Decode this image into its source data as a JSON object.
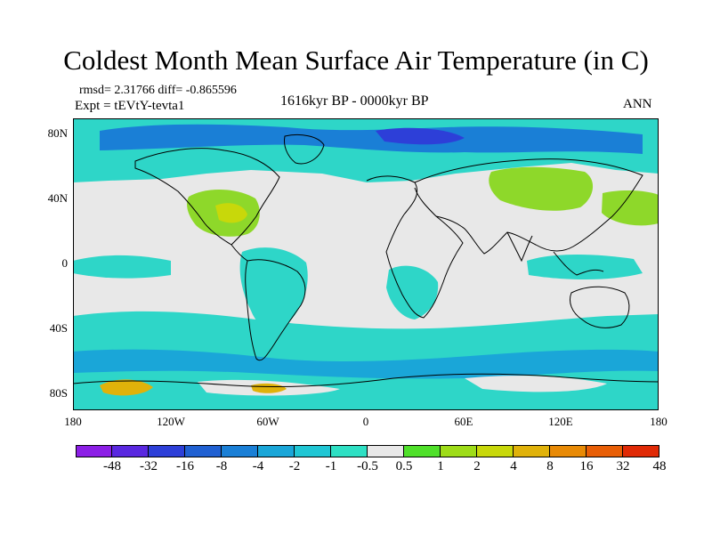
{
  "title": "Coldest Month Mean Surface Air Temperature (in C)",
  "stats": "rmsd= 2.31766 diff= -0.865596",
  "experiment": "Expt = tEVtY-tevta1",
  "period": "1616kyr BP - 0000kyr BP",
  "season": "ANN",
  "y_ticks": [
    "80N",
    "40N",
    "0",
    "40S",
    "80S"
  ],
  "x_ticks": [
    "180",
    "120W",
    "60W",
    "0",
    "60E",
    "120E",
    "180"
  ],
  "colorbar": {
    "labels": [
      "-48",
      "-32",
      "-16",
      "-8",
      "-4",
      "-2",
      "-1",
      "-0.5",
      "0.5",
      "1",
      "2",
      "4",
      "8",
      "16",
      "32",
      "48"
    ],
    "colors": [
      "#8c1fe6",
      "#5a28e0",
      "#2d3fd8",
      "#2060d2",
      "#1a7fd6",
      "#1aa6d8",
      "#20c6d4",
      "#2ee0c4",
      "#e8e8e8",
      "#4fe02a",
      "#9edc18",
      "#c8d80a",
      "#e0b20a",
      "#e88a06",
      "#e85e06",
      "#e02a06"
    ]
  },
  "colors": {
    "ocean_near_zero": "#e8e8e8",
    "cool_anomaly": "#2ed6c8",
    "warm_anomaly": "#8ed82a",
    "strong_cool": "#2a7ad8",
    "strong_warm": "#e0b20a",
    "coast": "#000000"
  }
}
